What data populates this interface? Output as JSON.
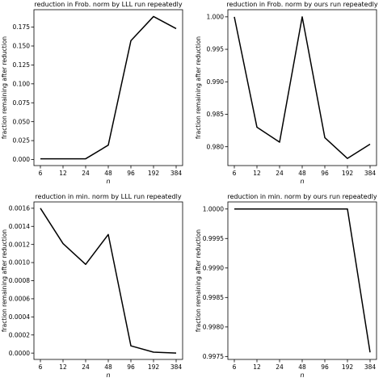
{
  "chart_data": [
    {
      "type": "line",
      "title": "reduction in Frob. norm by LLL run repeatedly",
      "xlabel": "n",
      "ylabel": "fraction remaining after reduction",
      "x": [
        "6",
        "12",
        "24",
        "48",
        "96",
        "192",
        "384"
      ],
      "series": [
        {
          "values": [
            0.001,
            0.001,
            0.001,
            0.019,
            0.157,
            0.189,
            0.173
          ]
        }
      ],
      "ylim": [
        -0.008,
        0.198
      ],
      "yticks": [
        "0.000",
        "0.025",
        "0.050",
        "0.075",
        "0.100",
        "0.125",
        "0.150",
        "0.175"
      ],
      "ytick_values": [
        0,
        0.025,
        0.05,
        0.075,
        0.1,
        0.125,
        0.15,
        0.175
      ]
    },
    {
      "type": "line",
      "title": "reduction in Frob. norm by ours run repeatedly",
      "xlabel": "n",
      "ylabel": "fraction remaining after reduction",
      "x": [
        "6",
        "12",
        "24",
        "48",
        "96",
        "192",
        "384"
      ],
      "series": [
        {
          "values": [
            1.0,
            0.983,
            0.9807,
            1.0,
            0.9814,
            0.9782,
            0.9804
          ]
        }
      ],
      "ylim": [
        0.9771,
        1.0011
      ],
      "yticks": [
        "0.980",
        "0.985",
        "0.990",
        "0.995",
        "1.000"
      ],
      "ytick_values": [
        0.98,
        0.985,
        0.99,
        0.995,
        1.0
      ]
    },
    {
      "type": "line",
      "title": "reduction in min. norm by LLL run repeatedly",
      "xlabel": "n",
      "ylabel": "fraction remaining after reduction",
      "x": [
        "6",
        "12",
        "24",
        "48",
        "96",
        "192",
        "384"
      ],
      "series": [
        {
          "values": [
            0.0016,
            0.00121,
            0.00098,
            0.00131,
            8e-05,
            1e-05,
            0.0
          ]
        }
      ],
      "ylim": [
        -7e-05,
        0.00167
      ],
      "yticks": [
        "0.0000",
        "0.0002",
        "0.0004",
        "0.0006",
        "0.0008",
        "0.0010",
        "0.0012",
        "0.0014",
        "0.0016"
      ],
      "ytick_values": [
        0,
        0.0002,
        0.0004,
        0.0006,
        0.0008,
        0.001,
        0.0012,
        0.0014,
        0.0016
      ]
    },
    {
      "type": "line",
      "title": "reduction in min. norm by ours run repeatedly",
      "xlabel": "n",
      "ylabel": "fraction remaining after reduction",
      "x": [
        "6",
        "12",
        "24",
        "48",
        "96",
        "192",
        "384"
      ],
      "series": [
        {
          "values": [
            1.0,
            1.0,
            1.0,
            1.0,
            1.0,
            1.0,
            0.99757
          ]
        }
      ],
      "ylim": [
        0.99745,
        1.00012
      ],
      "yticks": [
        "0.9975",
        "0.9980",
        "0.9985",
        "0.9990",
        "0.9995",
        "1.0000"
      ],
      "ytick_values": [
        0.9975,
        0.998,
        0.9985,
        0.999,
        0.9995,
        1.0
      ]
    }
  ]
}
